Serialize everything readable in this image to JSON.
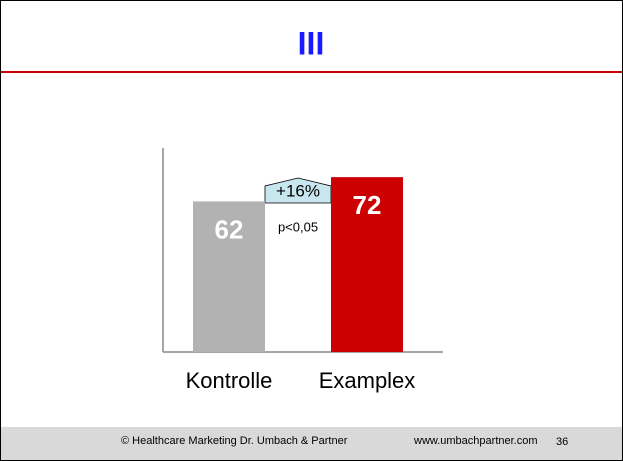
{
  "chart_data": {
    "type": "bar",
    "title": "III",
    "categories": [
      "Kontrolle",
      "Examplex"
    ],
    "values": [
      62,
      72
    ],
    "colors": [
      "#b2b2b2",
      "#cc0000"
    ],
    "ylim": [
      0,
      84
    ],
    "annotations": [
      "+16%",
      "p<0,05"
    ]
  },
  "footer": {
    "left": "© Healthcare Marketing Dr. Umbach & Partner",
    "url": "www.umbachpartner.com",
    "page": "36"
  }
}
